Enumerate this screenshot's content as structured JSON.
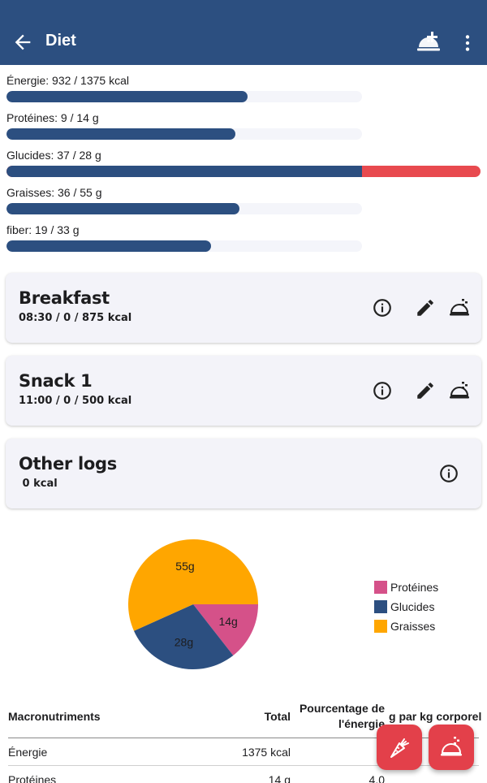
{
  "appbar": {
    "title": "Diet",
    "back_icon": "arrow-back-icon",
    "add_icon": "add-meal-icon",
    "more_icon": "more-vert-icon"
  },
  "progress": [
    {
      "label": "Énergie: 932 / 1375 kcal",
      "fraction": 0.678
    },
    {
      "label": "Protéines: 9 / 14 g",
      "fraction": 0.643
    },
    {
      "label": "Glucides: 37 / 28 g",
      "fraction": 1.321
    },
    {
      "label": "Graisses: 36 / 55 g",
      "fraction": 0.655
    },
    {
      "label": "fiber: 19 / 33 g",
      "fraction": 0.576
    }
  ],
  "meals": [
    {
      "name": "Breakfast",
      "sub": "08:30 /  0 / 875 kcal"
    },
    {
      "name": "Snack 1",
      "sub": "11:00 /  0 / 500 kcal"
    }
  ],
  "other_logs": {
    "name": "Other logs",
    "sub": " 0 kcal"
  },
  "chart_data": {
    "type": "pie",
    "title": "",
    "slices": [
      {
        "name": "Protéines",
        "value": 14,
        "label": "14g",
        "color": "#d55189"
      },
      {
        "name": "Glucides",
        "value": 28,
        "label": "28g",
        "color": "#2c4f80"
      },
      {
        "name": "Graisses",
        "value": 55,
        "label": "55g",
        "color": "#ffa600"
      }
    ],
    "legend": "right"
  },
  "table": {
    "headers": {
      "macro": "Macronutriments",
      "total": "Total",
      "pct_line1": "Pourcentage de",
      "pct_line2": "l'énergie",
      "perkg": "g par kg corporel"
    },
    "rows": [
      {
        "name": "Énergie",
        "total": "1375 kcal",
        "pct": ""
      },
      {
        "name": "Protéines",
        "total": "14 g",
        "pct": "4.0"
      }
    ]
  },
  "colors": {
    "primary": "#2c4f80",
    "accent": "#e3404a",
    "over": "#e84a4f",
    "track": "#f4f5fa"
  }
}
